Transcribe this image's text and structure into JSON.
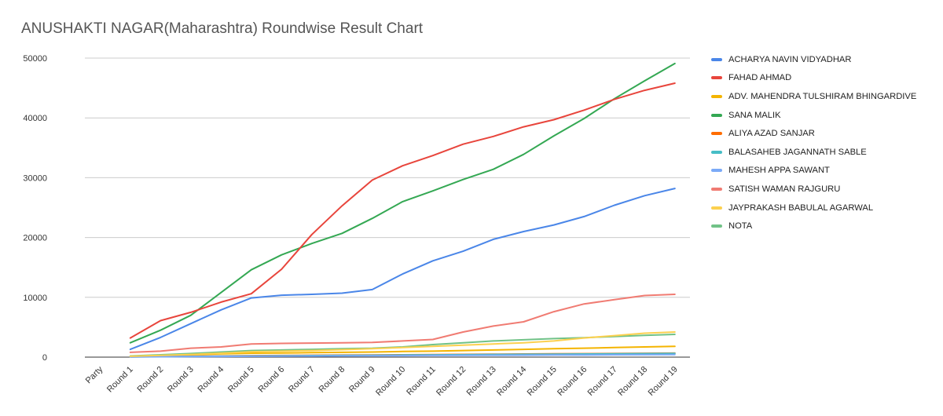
{
  "chart_data": {
    "type": "line",
    "title": "ANUSHAKTI NAGAR(Maharashtra) Roundwise Result Chart",
    "xlabel": "",
    "ylabel": "",
    "ylim": [
      0,
      50000
    ],
    "yticks": [
      "0",
      "10000",
      "20000",
      "30000",
      "40000",
      "50000"
    ],
    "ytick_values": [
      0,
      10000,
      20000,
      30000,
      40000,
      50000
    ],
    "grid": true,
    "legend_position": "right",
    "categories": [
      "Party",
      "Round 1",
      "Round 2",
      "Round 3",
      "Round 4",
      "Round 5",
      "Round 6",
      "Round 7",
      "Round 8",
      "Round 9",
      "Round 10",
      "Round 11",
      "Round 12",
      "Round 13",
      "Round 14",
      "Round 15",
      "Round 16",
      "Round 17",
      "Round 18",
      "Round 19"
    ],
    "series": [
      {
        "name": "ACHARYA NAVIN VIDYADHAR",
        "color": "#4a86e8",
        "values": [
          null,
          1300,
          3300,
          5600,
          7900,
          9900,
          10350,
          10500,
          10700,
          11300,
          13900,
          16100,
          17700,
          19700,
          21000,
          22100,
          23500,
          25400,
          27000,
          28200
        ]
      },
      {
        "name": "FAHAD AHMAD",
        "color": "#e8453c",
        "values": [
          null,
          3200,
          6100,
          7500,
          9200,
          10600,
          14700,
          20500,
          25300,
          29600,
          32000,
          33700,
          35600,
          36900,
          38500,
          39700,
          41300,
          43100,
          44600,
          45800
        ]
      },
      {
        "name": "ADV. MAHENDRA TULSHIRAM BHINGARDIVE",
        "color": "#f4b400",
        "values": [
          null,
          150,
          250,
          400,
          550,
          650,
          700,
          750,
          800,
          850,
          950,
          1000,
          1100,
          1200,
          1300,
          1400,
          1500,
          1600,
          1700,
          1800
        ]
      },
      {
        "name": "SANA MALIK",
        "color": "#34a853",
        "values": [
          null,
          2400,
          4500,
          7000,
          10800,
          14600,
          17100,
          19000,
          20700,
          23200,
          26000,
          27800,
          29700,
          31400,
          33900,
          37000,
          39900,
          43200,
          46200,
          49100
        ]
      },
      {
        "name": "ALIYA AZAD SANJAR",
        "color": "#ff6d01",
        "values": [
          null,
          50,
          100,
          150,
          200,
          250,
          280,
          310,
          340,
          370,
          400,
          430,
          460,
          490,
          520,
          550,
          580,
          610,
          640,
          670
        ]
      },
      {
        "name": "BALASAHEB JAGANNATH SABLE",
        "color": "#46bdc6",
        "values": [
          null,
          40,
          80,
          120,
          160,
          200,
          230,
          260,
          290,
          320,
          350,
          380,
          410,
          440,
          470,
          500,
          530,
          560,
          590,
          620
        ]
      },
      {
        "name": "MAHESH APPA SAWANT",
        "color": "#7baaf7",
        "values": [
          null,
          30,
          60,
          90,
          120,
          150,
          170,
          190,
          210,
          230,
          250,
          270,
          290,
          310,
          330,
          350,
          370,
          390,
          410,
          430
        ]
      },
      {
        "name": "SATISH WAMAN RAJGURU",
        "color": "#f07b72",
        "values": [
          null,
          800,
          1000,
          1500,
          1700,
          2200,
          2300,
          2350,
          2400,
          2450,
          2700,
          2950,
          4200,
          5200,
          5900,
          7600,
          8900,
          9600,
          10300,
          10500
        ]
      },
      {
        "name": "JAYPRAKASH BABULAL AGARWAL",
        "color": "#fcd04f",
        "values": [
          null,
          150,
          300,
          450,
          650,
          900,
          1000,
          1100,
          1250,
          1400,
          1600,
          1800,
          2000,
          2200,
          2400,
          2700,
          3200,
          3600,
          4000,
          4200
        ]
      },
      {
        "name": "NOTA",
        "color": "#71c287",
        "values": [
          null,
          200,
          400,
          600,
          850,
          1100,
          1200,
          1300,
          1400,
          1500,
          1700,
          2100,
          2400,
          2700,
          2900,
          3100,
          3250,
          3450,
          3650,
          3800
        ]
      }
    ]
  }
}
